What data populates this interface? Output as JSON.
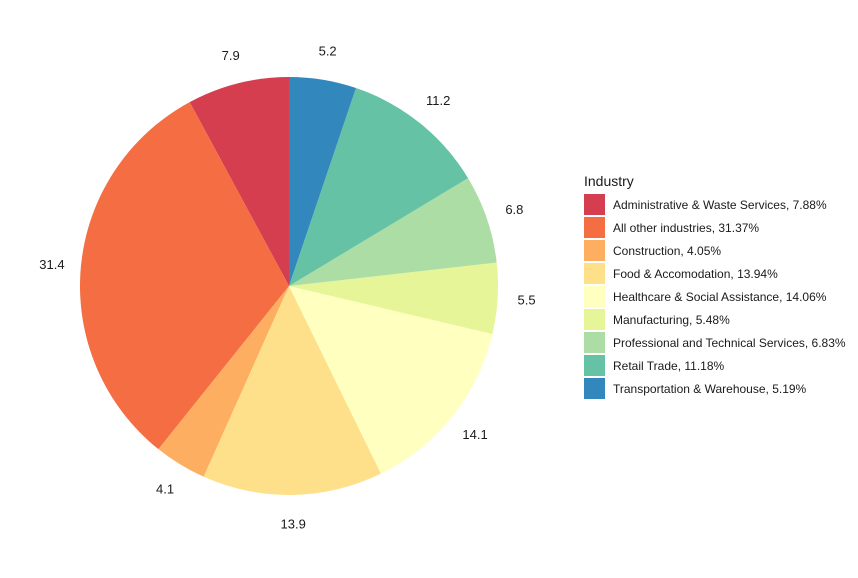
{
  "chart_data": {
    "type": "pie",
    "title": "",
    "legend": {
      "title": "Industry",
      "position": "right"
    },
    "start": "12 o'clock",
    "direction": "counter-clockwise",
    "slices": [
      {
        "category": "Administrative & Waste Services",
        "value": 7.88,
        "label": "7.9",
        "legend_label": "Administrative & Waste Services, 7.88%",
        "color": "#D53E4F"
      },
      {
        "category": "All other industries",
        "value": 31.37,
        "label": "31.4",
        "legend_label": "All other industries, 31.37%",
        "color": "#F46D43"
      },
      {
        "category": "Construction",
        "value": 4.05,
        "label": "4.1",
        "legend_label": "Construction, 4.05%",
        "color": "#FDAE61"
      },
      {
        "category": "Food & Accomodation",
        "value": 13.94,
        "label": "13.9",
        "legend_label": "Food & Accomodation, 13.94%",
        "color": "#FEE08B"
      },
      {
        "category": "Healthcare & Social Assistance",
        "value": 14.06,
        "label": "14.1",
        "legend_label": "Healthcare & Social Assistance, 14.06%",
        "color": "#FFFFBF"
      },
      {
        "category": "Manufacturing",
        "value": 5.48,
        "label": "5.5",
        "legend_label": "Manufacturing, 5.48%",
        "color": "#E6F598"
      },
      {
        "category": "Professional and Technical Services",
        "value": 6.83,
        "label": "6.8",
        "legend_label": "Professional and Technical Services, 6.83%",
        "color": "#ABDDA4"
      },
      {
        "category": "Retail Trade",
        "value": 11.18,
        "label": "11.2",
        "legend_label": "Retail Trade, 11.18%",
        "color": "#66C2A5"
      },
      {
        "category": "Transportation & Warehouse",
        "value": 5.19,
        "label": "5.2",
        "legend_label": "Transportation & Warehouse, 5.19%",
        "color": "#3288BD"
      }
    ]
  }
}
